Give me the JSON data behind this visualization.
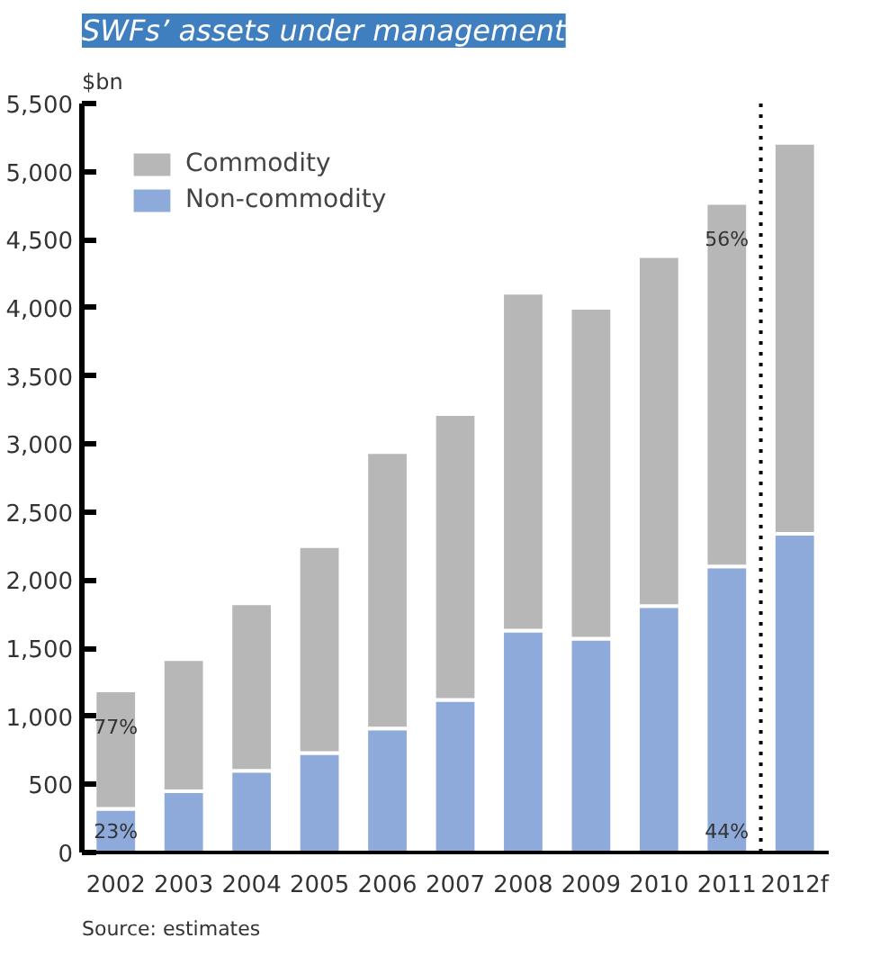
{
  "chart_data": {
    "type": "bar",
    "stacked": true,
    "title": "SWFs’ assets under management",
    "ylabel": "$bn",
    "x": [
      2002,
      2003,
      2004,
      2005,
      2006,
      2007,
      2008,
      2009,
      2010,
      2011,
      2012
    ],
    "xlim": [
      2001.5,
      2012.5
    ],
    "xticks": [
      2002,
      2003,
      2004,
      2005,
      2006,
      2007,
      2008,
      2009,
      2010,
      2011,
      {
        "value": 2012,
        "label": "2012f"
      }
    ],
    "ylim": [
      0,
      5500
    ],
    "yticks": [
      0,
      500,
      {
        "value": 1000,
        "label": "1,000"
      },
      {
        "value": 1500,
        "label": "1,500"
      },
      {
        "value": 2000,
        "label": "2,000"
      },
      {
        "value": 2500,
        "label": "2,500"
      },
      {
        "value": 3000,
        "label": "3,000"
      },
      {
        "value": 3500,
        "label": "3,500"
      },
      {
        "value": 4000,
        "label": "4,000"
      },
      {
        "value": 4500,
        "label": "4,500"
      },
      {
        "value": 5000,
        "label": "5,000"
      },
      {
        "value": 5500,
        "label": "5,500"
      }
    ],
    "series": [
      {
        "name": "Non-commodity",
        "color": "#8eaadb",
        "values": [
          320,
          450,
          600,
          730,
          910,
          1120,
          1630,
          1570,
          1810,
          2100,
          2340
        ]
      },
      {
        "name": "Commodity",
        "color": "#b7b7b7",
        "values": [
          870,
          970,
          1230,
          1520,
          2030,
          2100,
          2480,
          2430,
          2570,
          2670,
          2870
        ]
      }
    ],
    "ref_lines": [
      {
        "axis": "x",
        "value": 2011.5,
        "label": null,
        "color": "#000000",
        "line_style": "dotted"
      }
    ],
    "annotations": [
      "77%",
      "23%",
      "56%",
      "44%",
      "Source: estimates"
    ],
    "legend": "top left",
    "grid": false
  }
}
